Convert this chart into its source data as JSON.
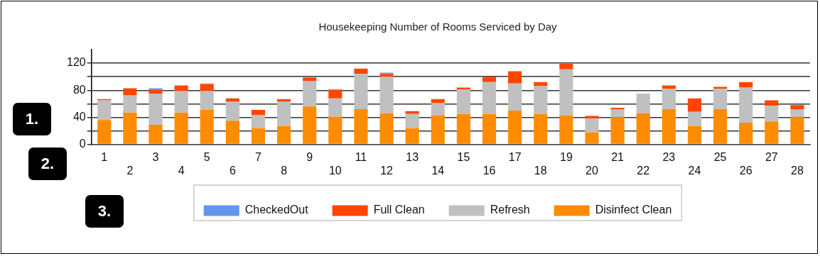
{
  "chart_data": {
    "type": "bar",
    "title": "Housekeeping Number of Rooms Serviced by Day",
    "categories": [
      "1",
      "2",
      "3",
      "4",
      "5",
      "6",
      "7",
      "8",
      "9",
      "10",
      "11",
      "12",
      "13",
      "14",
      "15",
      "16",
      "17",
      "18",
      "19",
      "20",
      "21",
      "22",
      "23",
      "24",
      "25",
      "26",
      "27",
      "28"
    ],
    "stacked": true,
    "series": [
      {
        "name": "Disinfect Clean",
        "color": "#ff8c00",
        "values": [
          36,
          47,
          29,
          47,
          51,
          35,
          24,
          27,
          56,
          41,
          52,
          46,
          24,
          43,
          45,
          45,
          50,
          45,
          43,
          18,
          40,
          46,
          52,
          27,
          52,
          32,
          34,
          40
        ]
      },
      {
        "name": "Refresh",
        "color": "#c0c0c0",
        "values": [
          29,
          26,
          46,
          32,
          28,
          28,
          19,
          36,
          38,
          27,
          52,
          54,
          21,
          18,
          36,
          47,
          40,
          41,
          68,
          20,
          12,
          29,
          30,
          21,
          30,
          52,
          23,
          12
        ]
      },
      {
        "name": "Full Clean",
        "color": "#ff4500",
        "values": [
          2,
          10,
          6,
          8,
          10,
          5,
          8,
          4,
          5,
          13,
          8,
          4,
          4,
          6,
          3,
          8,
          18,
          6,
          8,
          4,
          2,
          0,
          5,
          20,
          3,
          8,
          8,
          6
        ]
      },
      {
        "name": "CheckedOut",
        "color": "#6495ed",
        "values": [
          0,
          0,
          2,
          0,
          1,
          0,
          0,
          0,
          0,
          0,
          0,
          2,
          0,
          0,
          0,
          0,
          0,
          0,
          0,
          0,
          0,
          0,
          0,
          0,
          0,
          0,
          0,
          0
        ]
      }
    ],
    "ylim": [
      0,
      140
    ],
    "yticks": [
      0,
      {
        "value": 20,
        "label": null
      },
      40,
      {
        "value": 60,
        "label": null
      },
      80,
      {
        "value": 100,
        "label": null
      },
      120
    ],
    "grid": "y",
    "legend": "bottom",
    "annotations": [
      "1.",
      "2.",
      "3."
    ]
  }
}
